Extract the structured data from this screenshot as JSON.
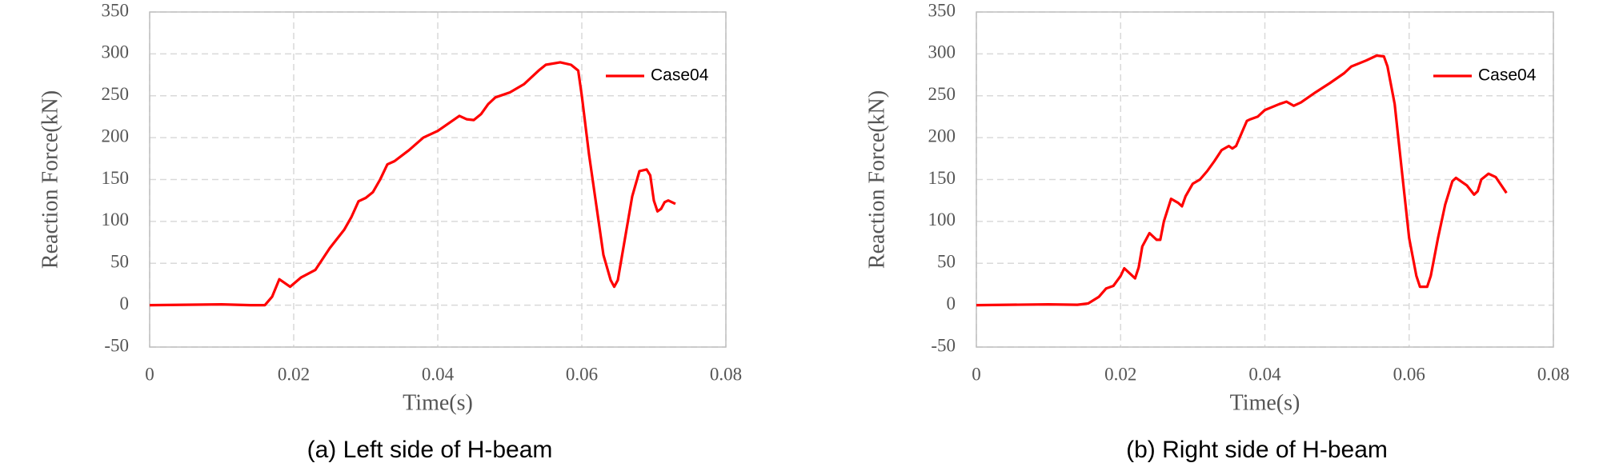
{
  "chart_data": [
    {
      "type": "line",
      "caption": "(a) Left side of H-beam",
      "xlabel": "Time(s)",
      "ylabel": "Reaction Force(kN)",
      "xlim": [
        0,
        0.08
      ],
      "xticks": [
        0,
        0.02,
        0.04,
        0.06,
        0.08
      ],
      "ylim": [
        -50,
        350
      ],
      "yticks": [
        -50,
        0,
        50,
        100,
        150,
        200,
        250,
        300,
        350
      ],
      "grid": true,
      "legend": "upper right",
      "x": [
        0,
        0.005,
        0.01,
        0.014,
        0.016,
        0.017,
        0.018,
        0.019,
        0.0195,
        0.021,
        0.023,
        0.025,
        0.027,
        0.028,
        0.029,
        0.03,
        0.031,
        0.032,
        0.033,
        0.034,
        0.036,
        0.038,
        0.04,
        0.042,
        0.043,
        0.044,
        0.045,
        0.046,
        0.047,
        0.048,
        0.05,
        0.052,
        0.054,
        0.055,
        0.057,
        0.0585,
        0.0595,
        0.06,
        0.061,
        0.062,
        0.063,
        0.064,
        0.0645,
        0.065,
        0.066,
        0.067,
        0.068,
        0.069,
        0.0695,
        0.07,
        0.0705,
        0.071,
        0.0715,
        0.072,
        0.073
      ],
      "series": [
        {
          "name": "Case04",
          "color": "#ff0000",
          "values": [
            0,
            0.5,
            1,
            0,
            0,
            10,
            31,
            25,
            22,
            33,
            42,
            68,
            90,
            105,
            124,
            128,
            135,
            150,
            168,
            172,
            185,
            200,
            208,
            220,
            226,
            222,
            221,
            228,
            240,
            248,
            254,
            264,
            280,
            287,
            290,
            287,
            280,
            250,
            180,
            120,
            60,
            30,
            22,
            30,
            80,
            130,
            160,
            162,
            155,
            125,
            112,
            115,
            123,
            125,
            121
          ]
        }
      ]
    },
    {
      "type": "line",
      "caption": "(b) Right side of H-beam",
      "xlabel": "Time(s)",
      "ylabel": "Reaction Force(kN)",
      "xlim": [
        0,
        0.08
      ],
      "xticks": [
        0,
        0.02,
        0.04,
        0.06,
        0.08
      ],
      "ylim": [
        -50,
        350
      ],
      "yticks": [
        -50,
        0,
        50,
        100,
        150,
        200,
        250,
        300,
        350
      ],
      "grid": true,
      "legend": "upper right",
      "x": [
        0,
        0.01,
        0.014,
        0.0155,
        0.017,
        0.018,
        0.019,
        0.02,
        0.0205,
        0.021,
        0.022,
        0.0225,
        0.023,
        0.024,
        0.025,
        0.0255,
        0.026,
        0.027,
        0.028,
        0.0285,
        0.029,
        0.03,
        0.031,
        0.032,
        0.033,
        0.034,
        0.035,
        0.0355,
        0.036,
        0.037,
        0.0375,
        0.038,
        0.039,
        0.04,
        0.042,
        0.043,
        0.044,
        0.045,
        0.047,
        0.049,
        0.051,
        0.052,
        0.054,
        0.0555,
        0.0565,
        0.057,
        0.058,
        0.059,
        0.06,
        0.061,
        0.0615,
        0.0625,
        0.063,
        0.064,
        0.065,
        0.066,
        0.0665,
        0.068,
        0.069,
        0.0695,
        0.07,
        0.071,
        0.072,
        0.0735
      ],
      "series": [
        {
          "name": "Case04",
          "color": "#ff0000",
          "values": [
            0,
            1,
            0.5,
            2,
            10,
            20,
            23,
            35,
            44,
            40,
            32,
            45,
            70,
            86,
            78,
            78,
            100,
            127,
            122,
            118,
            130,
            145,
            150,
            160,
            172,
            185,
            190,
            187,
            190,
            210,
            220,
            222,
            225,
            233,
            240,
            243,
            238,
            242,
            254,
            265,
            277,
            285,
            292,
            298,
            297,
            285,
            240,
            160,
            80,
            35,
            22,
            22,
            35,
            80,
            120,
            148,
            152,
            143,
            132,
            136,
            150,
            157,
            153,
            134
          ]
        }
      ]
    }
  ]
}
